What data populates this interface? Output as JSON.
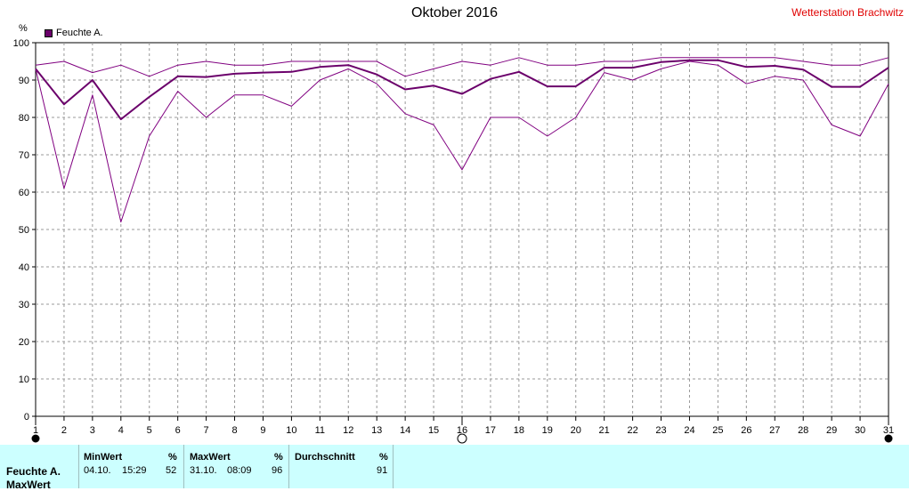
{
  "header": {
    "title": "Oktober 2016",
    "station": "Wetterstation Brachwitz",
    "y_unit": "%"
  },
  "legend": {
    "label": "Feuchte A.",
    "color": "#6b006b"
  },
  "chart_data": {
    "type": "line",
    "title": "Oktober 2016",
    "ylabel": "%",
    "ylim": [
      0,
      100
    ],
    "xlim": [
      1,
      31
    ],
    "yticks": [
      0,
      10,
      20,
      30,
      40,
      50,
      60,
      70,
      80,
      90,
      100
    ],
    "x": [
      1,
      2,
      3,
      4,
      5,
      6,
      7,
      8,
      9,
      10,
      11,
      12,
      13,
      14,
      15,
      16,
      17,
      18,
      19,
      20,
      21,
      22,
      23,
      24,
      25,
      26,
      27,
      28,
      29,
      30,
      31
    ],
    "grid": true,
    "series": [
      {
        "name": "Feuchte A.",
        "role": "max",
        "color": "#800080",
        "width": 1,
        "values": [
          94,
          95,
          92,
          94,
          91,
          94,
          95,
          94,
          94,
          95,
          95,
          95,
          95,
          91,
          93,
          95,
          94,
          96,
          94,
          94,
          95,
          95,
          96,
          96,
          96,
          96,
          96,
          95,
          94,
          94,
          96
        ]
      },
      {
        "name": "Feuchte A.",
        "role": "avg",
        "color": "#6b006b",
        "width": 2,
        "values": [
          93,
          83.5,
          90,
          79.5,
          85.5,
          91,
          90.8,
          91.7,
          92,
          92.2,
          93.5,
          94,
          91.5,
          87.5,
          88.5,
          86.3,
          90.3,
          92.2,
          88.3,
          88.3,
          93.3,
          93.3,
          94.8,
          95.3,
          95.3,
          93.5,
          93.8,
          92.8,
          88.2,
          88.2,
          93.3
        ]
      },
      {
        "name": "Feuchte A.",
        "role": "min",
        "color": "#800080",
        "width": 1,
        "values": [
          93,
          61,
          86,
          52,
          75,
          87,
          80,
          86,
          86,
          83,
          90,
          93,
          89,
          81,
          78,
          66,
          80,
          80,
          75,
          80,
          92,
          90,
          93,
          95,
          94,
          89,
          91,
          90,
          78,
          75,
          89
        ]
      }
    ],
    "markers": [
      {
        "x": 1,
        "style": "filled"
      },
      {
        "x": 16,
        "style": "open"
      },
      {
        "x": 31,
        "style": "filled"
      }
    ]
  },
  "stats": {
    "row_label": "Feuchte A.",
    "row_label2": "MaxWert",
    "min": {
      "header": "MinWert",
      "unit": "%",
      "date": "04.10.",
      "time": "15:29",
      "value": "52"
    },
    "max": {
      "header": "MaxWert",
      "unit": "%",
      "date": "31.10.",
      "time": "08:09",
      "value": "96"
    },
    "avg": {
      "header": "Durchschnitt",
      "unit": "%",
      "value": "91"
    }
  }
}
